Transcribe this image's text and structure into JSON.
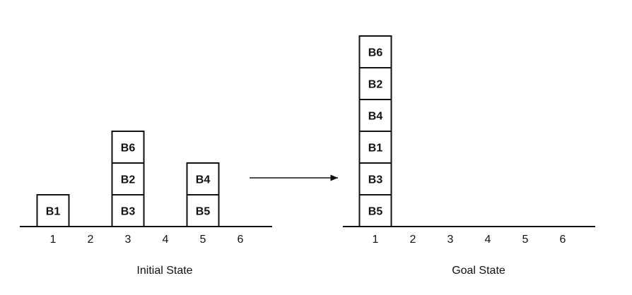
{
  "initial_state": {
    "caption": "Initial State",
    "slots": [
      "1",
      "2",
      "3",
      "4",
      "5",
      "6"
    ],
    "stacks": [
      {
        "slot": "1",
        "blocks": [
          "B1"
        ]
      },
      {
        "slot": "3",
        "blocks": [
          "B3",
          "B2",
          "B6"
        ]
      },
      {
        "slot": "5",
        "blocks": [
          "B5",
          "B4"
        ]
      }
    ]
  },
  "goal_state": {
    "caption": "Goal State",
    "slots": [
      "1",
      "2",
      "3",
      "4",
      "5",
      "6"
    ],
    "stacks": [
      {
        "slot": "1",
        "blocks": [
          "B5",
          "B3",
          "B1",
          "B4",
          "B2",
          "B6"
        ]
      }
    ]
  },
  "arrow": {
    "direction": "left-to-right"
  }
}
